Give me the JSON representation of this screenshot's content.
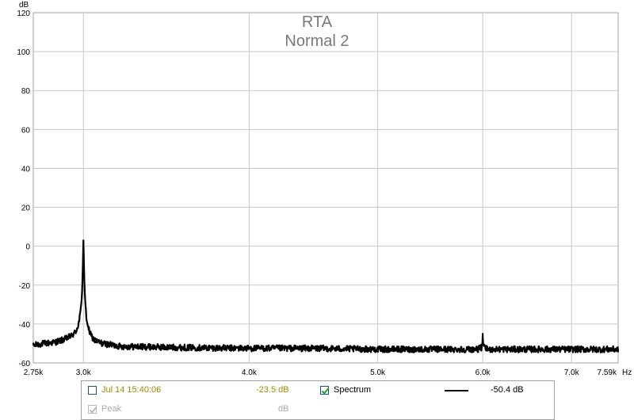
{
  "chart_data": {
    "type": "line",
    "title": "RTA",
    "subtitle": "Normal 2",
    "ylabel": "dB",
    "xunit": "Hz",
    "x_scale": "log",
    "xlim": [
      2750,
      7590
    ],
    "ylim": [
      -60,
      120
    ],
    "grid": true,
    "x_ticks": [
      2750,
      3000,
      4000,
      5000,
      6000,
      7000,
      7590
    ],
    "x_tick_labels": [
      "2.75k",
      "3.0k",
      "4.0k",
      "5.0k",
      "6.0k",
      "7.0k",
      "7.59k"
    ],
    "y_ticks": [
      -60,
      -40,
      -20,
      0,
      20,
      40,
      60,
      80,
      100,
      120
    ],
    "y_tick_labels": [
      "-60",
      "-40",
      "-20",
      "0",
      "20",
      "40",
      "60",
      "80",
      "100",
      "120"
    ],
    "series": [
      {
        "name": "Spectrum",
        "color": "#000000",
        "x": [
          2750,
          2800,
          2850,
          2900,
          2940,
          2960,
          2975,
          2985,
          2992,
          2996,
          2998,
          3000,
          3002,
          3004,
          3008,
          3015,
          3025,
          3040,
          3060,
          3100,
          3200,
          3500,
          4000,
          4500,
          5000,
          5500,
          5950,
          5990,
          5998,
          6000,
          6002,
          6010,
          6050,
          6500,
          7000,
          7590
        ],
        "values": [
          -51,
          -50,
          -49.5,
          -48,
          -46,
          -44,
          -40,
          -34,
          -26,
          -15,
          -5,
          3,
          -5,
          -15,
          -26,
          -36,
          -42,
          -46,
          -48.5,
          -50,
          -51.5,
          -52,
          -52.5,
          -52.5,
          -53,
          -53,
          -53,
          -52,
          -49,
          -45,
          -49,
          -52,
          -53,
          -53,
          -53,
          -53
        ]
      }
    ]
  },
  "legend": {
    "items": [
      {
        "label": "Jul 14 15:40:06",
        "checked": false,
        "value": "-23.5 dB",
        "enabled": true
      },
      {
        "label": "Spectrum",
        "checked": true,
        "value": "-50.4 dB",
        "enabled": true
      },
      {
        "label": "Peak",
        "checked": true,
        "value": "dB",
        "enabled": false
      }
    ]
  },
  "colors": {
    "grid": "#c8c8c8",
    "frame": "#a0a0a0",
    "title": "#7a7a7a",
    "trace": "#000000",
    "legend_olive": "#a08c00",
    "legend_disabled": "#a8a8a8"
  }
}
